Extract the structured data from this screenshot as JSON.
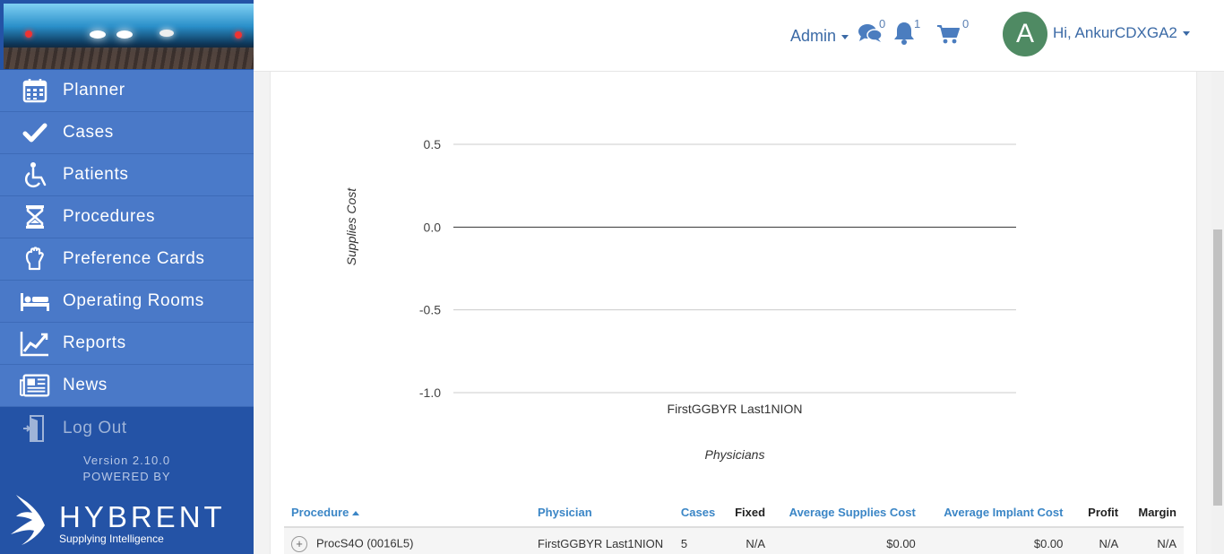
{
  "header": {
    "admin_label": "Admin",
    "messages_count": "0",
    "notifications_count": "1",
    "cart_count": "0",
    "avatar_initial": "A",
    "greeting": "Hi, AnkurCDXGA2"
  },
  "sidebar": {
    "items": [
      {
        "label": "Planner",
        "icon": "calendar-icon"
      },
      {
        "label": "Cases",
        "icon": "check-icon"
      },
      {
        "label": "Patients",
        "icon": "wheelchair-icon"
      },
      {
        "label": "Procedures",
        "icon": "hourglass-icon"
      },
      {
        "label": "Preference Cards",
        "icon": "glove-icon"
      },
      {
        "label": "Operating Rooms",
        "icon": "bed-icon"
      },
      {
        "label": "Reports",
        "icon": "line-chart-icon"
      },
      {
        "label": "News",
        "icon": "newspaper-icon"
      },
      {
        "label": "Log Out",
        "icon": "door-exit-icon"
      }
    ],
    "version": "Version 2.10.0",
    "powered_by": "POWERED BY",
    "brand_name": "HYBRENT",
    "brand_tagline": "Supplying Intelligence"
  },
  "chart_data": {
    "type": "bar",
    "categories": [
      "FirstGGBYR Last1NION"
    ],
    "series": [
      {
        "values": [
          0
        ]
      }
    ],
    "title": "",
    "xlabel": "Physicians",
    "ylabel": "Supplies Cost",
    "ylim": [
      -1.0,
      0.5
    ],
    "yticks": [
      "0.5",
      "0.0",
      "-0.5",
      "-1.0"
    ],
    "ytick_values": [
      0.5,
      0.0,
      -0.5,
      -1.0
    ],
    "grid": true
  },
  "table": {
    "columns": [
      "Procedure",
      "Physician",
      "Cases",
      "Fixed",
      "Average Supplies Cost",
      "Average Implant Cost",
      "Profit",
      "Margin"
    ],
    "rows": [
      [
        "ProcS4O (0016L5)",
        "FirstGGBYR Last1NION",
        "5",
        "N/A",
        "$0.00",
        "$0.00",
        "N/A",
        "N/A"
      ]
    ]
  }
}
